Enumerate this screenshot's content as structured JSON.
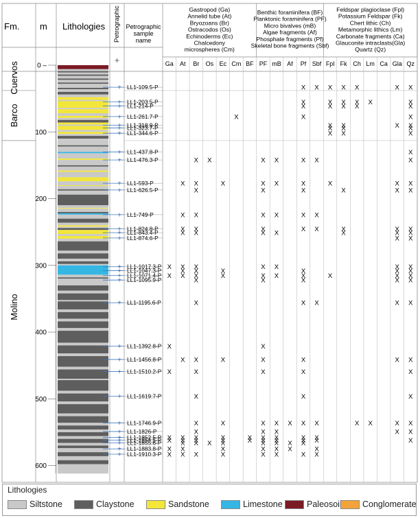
{
  "header": {
    "fm": "Fm.",
    "m": "m",
    "lithologies": "Lithologies",
    "petrographic": "Petrographic",
    "sample_name": [
      "Petrographic",
      "sample",
      "name"
    ],
    "plus_symbol": "+",
    "group1": [
      "Gastropod (Ga)",
      "Annelid tube (At)",
      "Bryozoans (Br)",
      "Ostracodos (Os)",
      "Echinoderms (Ec)",
      "Chalcedony",
      "microspheres (Cm)"
    ],
    "group2": [
      "Benthic foraminifera (BF)",
      "Planktonic foraminifera (PF)",
      "Micro bivalves (mB)",
      "Algae fragments (Af)",
      "Phosphate fragments (Pf)",
      "Skeletal bone fragments (Sbf)"
    ],
    "group3": [
      "Feldspar plagioclase (Fpl)",
      "Potassium Feldspar (Fk)",
      "Chert lithic (Ch)",
      "Metamorphic lithics (Lm)",
      "Carbonate fragments (Ca)",
      "Glauconite intraclasts(Gla)",
      "Quartz (Qz)"
    ]
  },
  "columns": [
    "Ga",
    "At",
    "Br",
    "Os",
    "Ec",
    "Cm",
    "BF",
    "PF",
    "mB",
    "Af",
    "Pf",
    "Sbf",
    "Fpl",
    "Fk",
    "Ch",
    "Lm",
    "Ca",
    "Gla",
    "Qz"
  ],
  "mark": "X",
  "depth_axis": {
    "ticks": [
      0,
      100,
      200,
      300,
      400,
      500,
      600
    ]
  },
  "formations": [
    {
      "name": "Cuervos",
      "top": 0,
      "bottom": 38
    },
    {
      "name": "Barco",
      "top": 38,
      "bottom": 113
    },
    {
      "name": "Molino",
      "top": 113,
      "bottom": 612
    }
  ],
  "samples": [
    {
      "name": "LL1-109.5-P",
      "depth": 33,
      "marks": [
        "Pf",
        "Sbf",
        "Fpl",
        "Fk",
        "Ch",
        "Gla",
        "Qz"
      ]
    },
    {
      "name": "LL1-203.5-P",
      "depth": 55,
      "marks": [
        "Pf",
        "Fpl",
        "Fk",
        "Ch",
        "Lm",
        "Qz"
      ]
    },
    {
      "name": "LL1-214-P",
      "depth": 61,
      "marks": [
        "Pf",
        "Fpl",
        "Fk",
        "Ch",
        "Qz"
      ]
    },
    {
      "name": "LL1-261.7-P",
      "depth": 77,
      "marks": [
        "Cm",
        "Pf",
        "Qz"
      ]
    },
    {
      "name": "LL1-318.9-P",
      "depth": 90,
      "marks": [
        "Fpl",
        "Fk",
        "Gla",
        "Qz"
      ]
    },
    {
      "name": "LL1-323.7-P",
      "depth": 94,
      "marks": [
        "Fpl",
        "Fk",
        "Qz"
      ]
    },
    {
      "name": "LL1-344.6-P",
      "depth": 102,
      "marks": [
        "Fpl",
        "Fk",
        "Qz"
      ]
    },
    {
      "name": "LL1-437.8-P",
      "depth": 130,
      "marks": [
        "Qz"
      ]
    },
    {
      "name": "LL1-476.3-P",
      "depth": 142,
      "marks": [
        "Br",
        "Os",
        "PF",
        "mB",
        "Pf",
        "Sbf",
        "Qz"
      ]
    },
    {
      "name": "LL1-593-P",
      "depth": 177,
      "marks": [
        "At",
        "Br",
        "Ec",
        "PF",
        "mB",
        "Pf",
        "Fpl",
        "Gla",
        "Qz"
      ]
    },
    {
      "name": "LL1-626.5-P",
      "depth": 187,
      "marks": [
        "Br",
        "PF",
        "Pf",
        "Fk",
        "Gla",
        "Qz"
      ]
    },
    {
      "name": "LL1-749-P",
      "depth": 224,
      "marks": [
        "At",
        "Br",
        "PF",
        "mB",
        "Pf",
        "Sbf"
      ]
    },
    {
      "name": "LL1-824.8-P",
      "depth": 245,
      "marks": [
        "At",
        "Br",
        "PF",
        "Pf",
        "Sbf",
        "Fk",
        "Gla",
        "Qz"
      ]
    },
    {
      "name": "LL1-843.4-P",
      "depth": 251,
      "marks": [
        "At",
        "Br",
        "PF",
        "mB",
        "Fk",
        "Gla",
        "Qz"
      ]
    },
    {
      "name": "LL1-874.6-P",
      "depth": 259,
      "marks": [
        "Gla",
        "Qz"
      ]
    },
    {
      "name": "LL1-1017.3-P",
      "depth": 302,
      "marks": [
        "Ga",
        "At",
        "Br",
        "PF",
        "mB",
        "Gla",
        "Qz"
      ]
    },
    {
      "name": "LL1-1047.3-P",
      "depth": 308,
      "marks": [
        "At",
        "Br",
        "Ec",
        "Pf",
        "Gla",
        "Qz"
      ]
    },
    {
      "name": "LL1-1071.4-P",
      "depth": 315,
      "marks": [
        "Ga",
        "At",
        "Br",
        "Ec",
        "PF",
        "mB",
        "Pf",
        "Fpl",
        "Gla",
        "Qz"
      ]
    },
    {
      "name": "LL1-1095.9-P",
      "depth": 322,
      "marks": [
        "Br",
        "PF",
        "Pf",
        "Gla",
        "Qz"
      ]
    },
    {
      "name": "LL1-1195.6-P",
      "depth": 356,
      "marks": [
        "Br",
        "Pf",
        "Sbf",
        "Gla",
        "Qz"
      ]
    },
    {
      "name": "LL1-1392.8-P",
      "depth": 421,
      "marks": [
        "Ga",
        "PF"
      ]
    },
    {
      "name": "LL1-1456.8-P",
      "depth": 441,
      "marks": [
        "At",
        "Br",
        "Ec",
        "PF",
        "Pf",
        "Gla",
        "Qz"
      ]
    },
    {
      "name": "LL1-1510.2-P",
      "depth": 459,
      "marks": [
        "Ga",
        "Br",
        "PF",
        "Pf",
        "Qz"
      ]
    },
    {
      "name": "LL1-1619.7-P",
      "depth": 496,
      "marks": [
        "Br",
        "Pf",
        "Qz"
      ]
    },
    {
      "name": "LL1-1746.9-P",
      "depth": 536,
      "marks": [
        "Br",
        "Ec",
        "PF",
        "mB",
        "Af",
        "Pf",
        "Sbf",
        "Ch",
        "Lm",
        "Gla",
        "Qz"
      ]
    },
    {
      "name": "LL1-1826-P",
      "depth": 549,
      "marks": [
        "Br",
        "PF",
        "mB",
        "Gla",
        "Qz"
      ]
    },
    {
      "name": "LL1-1852.5-P",
      "depth": 558,
      "marks": [
        "Ga",
        "At",
        "Br",
        "Ec",
        "BF",
        "PF",
        "mB",
        "Pf",
        "Sbf"
      ]
    },
    {
      "name": "LL1-1854.5-P",
      "depth": 562,
      "marks": [
        "Ga",
        "At",
        "Br",
        "Ec",
        "BF",
        "PF",
        "mB",
        "Pf",
        "Sbf",
        "Qz"
      ]
    },
    {
      "name": "LL1-1855.6-P",
      "depth": 566,
      "marks": [
        "At",
        "Br",
        "Os",
        "Ec",
        "PF",
        "mB",
        "Af",
        "Pf"
      ]
    },
    {
      "name": "LL1-1883.8-P",
      "depth": 575,
      "marks": [
        "Ga",
        "At",
        "Ec",
        "PF",
        "mB",
        "Af",
        "Sbf"
      ]
    },
    {
      "name": "LL1-1910.3-P",
      "depth": 583,
      "marks": [
        "Ga",
        "At",
        "Br",
        "Ec",
        "PF",
        "mB",
        "Pf",
        "Sbf"
      ]
    }
  ],
  "lithology_colors": {
    "Siltstone": "#c9c9c9",
    "Claystone": "#5e5e5e",
    "Sandstone": "#f3e63a",
    "Limestone": "#35b6e3",
    "Paleosoil": "#7a1a25",
    "Conglomerate": "#f2a43a"
  },
  "lithology_beds": [
    [
      "Paleosoil",
      0,
      6
    ],
    [
      "Siltstone",
      6,
      9
    ],
    [
      "Claystone",
      9,
      11
    ],
    [
      "Siltstone",
      11,
      14
    ],
    [
      "Claystone",
      14,
      16
    ],
    [
      "Siltstone",
      16,
      20
    ],
    [
      "Claystone",
      20,
      22
    ],
    [
      "Siltstone",
      22,
      26
    ],
    [
      "Claystone",
      26,
      28
    ],
    [
      "Siltstone",
      28,
      34
    ],
    [
      "Claystone",
      34,
      36
    ],
    [
      "Siltstone",
      36,
      40
    ],
    [
      "Claystone",
      40,
      44
    ],
    [
      "Siltstone",
      44,
      48
    ],
    [
      "Sandstone",
      48,
      52
    ],
    [
      "Siltstone",
      52,
      54
    ],
    [
      "Sandstone",
      54,
      64
    ],
    [
      "Siltstone",
      64,
      66
    ],
    [
      "Sandstone",
      66,
      72
    ],
    [
      "Siltstone",
      72,
      76
    ],
    [
      "Sandstone",
      76,
      79
    ],
    [
      "Siltstone",
      79,
      82
    ],
    [
      "Claystone",
      82,
      86
    ],
    [
      "Sandstone",
      86,
      89
    ],
    [
      "Siltstone",
      89,
      91
    ],
    [
      "Sandstone",
      91,
      97
    ],
    [
      "Siltstone",
      97,
      100
    ],
    [
      "Sandstone",
      100,
      103
    ],
    [
      "Siltstone",
      103,
      106
    ],
    [
      "Claystone",
      106,
      110
    ],
    [
      "Siltstone",
      110,
      113
    ],
    [
      "Siltstone",
      113,
      120
    ],
    [
      "Claystone",
      120,
      122
    ],
    [
      "Siltstone",
      122,
      130
    ],
    [
      "Limestone",
      130,
      132
    ],
    [
      "Siltstone",
      132,
      140
    ],
    [
      "Sandstone",
      140,
      142
    ],
    [
      "Siltstone",
      142,
      150
    ],
    [
      "Claystone",
      150,
      152
    ],
    [
      "Siltstone",
      152,
      158
    ],
    [
      "Sandstone",
      158,
      160
    ],
    [
      "Siltstone",
      160,
      168
    ],
    [
      "Sandstone",
      168,
      174
    ],
    [
      "Siltstone",
      174,
      180
    ],
    [
      "Sandstone",
      180,
      181
    ],
    [
      "Siltstone",
      181,
      186
    ],
    [
      "Claystone",
      186,
      188
    ],
    [
      "Siltstone",
      188,
      194
    ],
    [
      "Claystone",
      194,
      210
    ],
    [
      "Siltstone",
      210,
      214
    ],
    [
      "Sandstone",
      214,
      215
    ],
    [
      "Siltstone",
      215,
      220
    ],
    [
      "Claystone",
      220,
      222
    ],
    [
      "Limestone",
      222,
      224
    ],
    [
      "Siltstone",
      224,
      230
    ],
    [
      "Claystone",
      230,
      236
    ],
    [
      "Siltstone",
      236,
      240
    ],
    [
      "Sandstone",
      240,
      242
    ],
    [
      "Siltstone",
      242,
      244
    ],
    [
      "Claystone",
      244,
      247
    ],
    [
      "Sandstone",
      247,
      253
    ],
    [
      "Siltstone",
      253,
      256
    ],
    [
      "Sandstone",
      256,
      260
    ],
    [
      "Siltstone",
      260,
      264
    ],
    [
      "Claystone",
      264,
      278
    ],
    [
      "Siltstone",
      278,
      282
    ],
    [
      "Claystone",
      282,
      290
    ],
    [
      "Siltstone",
      290,
      294
    ],
    [
      "Claystone",
      294,
      298
    ],
    [
      "Siltstone",
      298,
      300
    ],
    [
      "Limestone",
      300,
      314
    ],
    [
      "Siltstone",
      314,
      318
    ],
    [
      "Claystone",
      318,
      320
    ],
    [
      "Siltstone",
      320,
      330
    ],
    [
      "Claystone",
      330,
      338
    ],
    [
      "Siltstone",
      338,
      342
    ],
    [
      "Claystone",
      342,
      352
    ],
    [
      "Siltstone",
      352,
      354
    ],
    [
      "Claystone",
      354,
      366
    ],
    [
      "Siltstone",
      366,
      370
    ],
    [
      "Claystone",
      370,
      380
    ],
    [
      "Siltstone",
      380,
      384
    ],
    [
      "Claystone",
      384,
      394
    ],
    [
      "Siltstone",
      394,
      398
    ],
    [
      "Claystone",
      398,
      416
    ],
    [
      "Siltstone",
      416,
      420
    ],
    [
      "Claystone",
      420,
      432
    ],
    [
      "Siltstone",
      432,
      436
    ],
    [
      "Claystone",
      436,
      452
    ],
    [
      "Siltstone",
      452,
      456
    ],
    [
      "Claystone",
      456,
      470
    ],
    [
      "Siltstone",
      470,
      472
    ],
    [
      "Claystone",
      472,
      488
    ],
    [
      "Siltstone",
      488,
      492
    ],
    [
      "Claystone",
      492,
      504
    ],
    [
      "Siltstone",
      504,
      508
    ],
    [
      "Claystone",
      508,
      522
    ],
    [
      "Siltstone",
      522,
      526
    ],
    [
      "Claystone",
      526,
      536
    ],
    [
      "Siltstone",
      536,
      540
    ],
    [
      "Claystone",
      540,
      546
    ],
    [
      "Siltstone",
      546,
      550
    ],
    [
      "Claystone",
      550,
      556
    ],
    [
      "Siltstone",
      556,
      560
    ],
    [
      "Claystone",
      560,
      566
    ],
    [
      "Siltstone",
      566,
      570
    ],
    [
      "Claystone",
      570,
      574
    ],
    [
      "Siltstone",
      574,
      580
    ],
    [
      "Claystone",
      580,
      586
    ],
    [
      "Siltstone",
      586,
      592
    ],
    [
      "Claystone",
      592,
      598
    ],
    [
      "Siltstone",
      598,
      612
    ]
  ],
  "legend": {
    "title": "Lithologies",
    "items": [
      "Siltstone",
      "Claystone",
      "Sandstone",
      "Limestone",
      "Paleosoil",
      "Conglomerate"
    ]
  }
}
